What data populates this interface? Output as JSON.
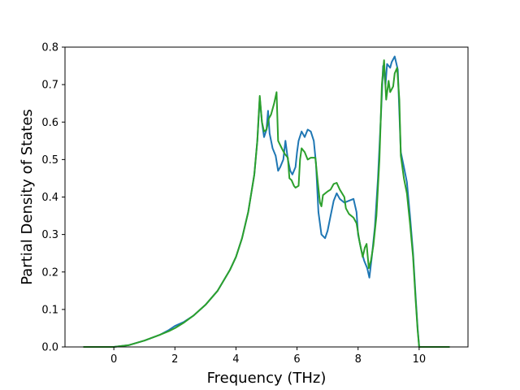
{
  "chart_data": {
    "type": "line",
    "title": "",
    "xlabel": "Frequency (THz)",
    "ylabel": "Partial Density of States",
    "xlim": [
      -1.6,
      11.6
    ],
    "ylim": [
      0,
      0.8
    ],
    "x_ticks": [
      0,
      2,
      4,
      6,
      8,
      10
    ],
    "x_tick_labels": [
      "0",
      "2",
      "4",
      "6",
      "8",
      "10"
    ],
    "y_ticks": [
      0.0,
      0.1,
      0.2,
      0.3,
      0.4,
      0.5,
      0.6,
      0.7,
      0.8
    ],
    "y_tick_labels": [
      "0.0",
      "0.1",
      "0.2",
      "0.3",
      "0.4",
      "0.5",
      "0.6",
      "0.7",
      "0.8"
    ],
    "grid": false,
    "legend": false,
    "series": [
      {
        "color": "#1f77b4",
        "points": [
          [
            -1.0,
            0
          ],
          [
            0.0,
            0
          ],
          [
            0.5,
            0.005
          ],
          [
            1.0,
            0.017
          ],
          [
            1.5,
            0.032
          ],
          [
            1.8,
            0.045
          ],
          [
            2.0,
            0.056
          ],
          [
            2.3,
            0.067
          ],
          [
            2.6,
            0.083
          ],
          [
            3.0,
            0.112
          ],
          [
            3.4,
            0.15
          ],
          [
            3.8,
            0.205
          ],
          [
            4.0,
            0.24
          ],
          [
            4.2,
            0.29
          ],
          [
            4.4,
            0.36
          ],
          [
            4.6,
            0.46
          ],
          [
            4.7,
            0.55
          ],
          [
            4.78,
            0.665
          ],
          [
            4.85,
            0.6
          ],
          [
            4.92,
            0.56
          ],
          [
            5.0,
            0.58
          ],
          [
            5.05,
            0.63
          ],
          [
            5.1,
            0.57
          ],
          [
            5.2,
            0.53
          ],
          [
            5.3,
            0.51
          ],
          [
            5.38,
            0.47
          ],
          [
            5.45,
            0.48
          ],
          [
            5.55,
            0.5
          ],
          [
            5.62,
            0.55
          ],
          [
            5.7,
            0.5
          ],
          [
            5.78,
            0.47
          ],
          [
            5.85,
            0.46
          ],
          [
            5.95,
            0.48
          ],
          [
            6.0,
            0.52
          ],
          [
            6.05,
            0.55
          ],
          [
            6.15,
            0.575
          ],
          [
            6.25,
            0.56
          ],
          [
            6.35,
            0.58
          ],
          [
            6.45,
            0.575
          ],
          [
            6.55,
            0.55
          ],
          [
            6.62,
            0.49
          ],
          [
            6.7,
            0.36
          ],
          [
            6.8,
            0.3
          ],
          [
            6.92,
            0.29
          ],
          [
            7.0,
            0.31
          ],
          [
            7.1,
            0.35
          ],
          [
            7.2,
            0.39
          ],
          [
            7.3,
            0.41
          ],
          [
            7.4,
            0.395
          ],
          [
            7.55,
            0.385
          ],
          [
            7.7,
            0.39
          ],
          [
            7.85,
            0.395
          ],
          [
            7.95,
            0.36
          ],
          [
            8.0,
            0.3
          ],
          [
            8.1,
            0.26
          ],
          [
            8.2,
            0.23
          ],
          [
            8.3,
            0.21
          ],
          [
            8.37,
            0.185
          ],
          [
            8.45,
            0.24
          ],
          [
            8.55,
            0.32
          ],
          [
            8.65,
            0.45
          ],
          [
            8.75,
            0.62
          ],
          [
            8.82,
            0.75
          ],
          [
            8.9,
            0.7
          ],
          [
            8.95,
            0.755
          ],
          [
            9.05,
            0.745
          ],
          [
            9.1,
            0.76
          ],
          [
            9.2,
            0.775
          ],
          [
            9.3,
            0.74
          ],
          [
            9.4,
            0.52
          ],
          [
            9.5,
            0.48
          ],
          [
            9.6,
            0.44
          ],
          [
            9.7,
            0.35
          ],
          [
            9.8,
            0.25
          ],
          [
            9.88,
            0.14
          ],
          [
            9.95,
            0.05
          ],
          [
            10.0,
            0
          ],
          [
            11.0,
            0
          ]
        ]
      },
      {
        "color": "#2ca02c",
        "points": [
          [
            -1.0,
            0
          ],
          [
            0.0,
            0
          ],
          [
            0.5,
            0.005
          ],
          [
            1.0,
            0.017
          ],
          [
            1.5,
            0.032
          ],
          [
            1.8,
            0.042
          ],
          [
            2.0,
            0.05
          ],
          [
            2.3,
            0.065
          ],
          [
            2.6,
            0.083
          ],
          [
            3.0,
            0.112
          ],
          [
            3.4,
            0.15
          ],
          [
            3.8,
            0.205
          ],
          [
            4.0,
            0.24
          ],
          [
            4.2,
            0.29
          ],
          [
            4.4,
            0.36
          ],
          [
            4.6,
            0.46
          ],
          [
            4.7,
            0.55
          ],
          [
            4.78,
            0.67
          ],
          [
            4.85,
            0.6
          ],
          [
            4.92,
            0.575
          ],
          [
            5.0,
            0.58
          ],
          [
            5.08,
            0.61
          ],
          [
            5.15,
            0.62
          ],
          [
            5.25,
            0.65
          ],
          [
            5.33,
            0.68
          ],
          [
            5.38,
            0.55
          ],
          [
            5.5,
            0.53
          ],
          [
            5.6,
            0.515
          ],
          [
            5.7,
            0.505
          ],
          [
            5.75,
            0.45
          ],
          [
            5.82,
            0.445
          ],
          [
            5.9,
            0.43
          ],
          [
            5.95,
            0.425
          ],
          [
            6.05,
            0.43
          ],
          [
            6.1,
            0.5
          ],
          [
            6.15,
            0.53
          ],
          [
            6.25,
            0.52
          ],
          [
            6.35,
            0.5
          ],
          [
            6.45,
            0.505
          ],
          [
            6.6,
            0.505
          ],
          [
            6.68,
            0.44
          ],
          [
            6.75,
            0.385
          ],
          [
            6.8,
            0.375
          ],
          [
            6.85,
            0.405
          ],
          [
            7.0,
            0.415
          ],
          [
            7.1,
            0.42
          ],
          [
            7.2,
            0.435
          ],
          [
            7.3,
            0.438
          ],
          [
            7.4,
            0.42
          ],
          [
            7.55,
            0.4
          ],
          [
            7.6,
            0.37
          ],
          [
            7.7,
            0.355
          ],
          [
            7.85,
            0.345
          ],
          [
            7.95,
            0.33
          ],
          [
            8.05,
            0.28
          ],
          [
            8.15,
            0.24
          ],
          [
            8.22,
            0.265
          ],
          [
            8.28,
            0.275
          ],
          [
            8.35,
            0.21
          ],
          [
            8.42,
            0.23
          ],
          [
            8.5,
            0.27
          ],
          [
            8.6,
            0.35
          ],
          [
            8.7,
            0.5
          ],
          [
            8.78,
            0.7
          ],
          [
            8.85,
            0.765
          ],
          [
            8.92,
            0.66
          ],
          [
            9.0,
            0.71
          ],
          [
            9.05,
            0.68
          ],
          [
            9.15,
            0.695
          ],
          [
            9.2,
            0.73
          ],
          [
            9.28,
            0.745
          ],
          [
            9.35,
            0.66
          ],
          [
            9.4,
            0.51
          ],
          [
            9.5,
            0.45
          ],
          [
            9.6,
            0.41
          ],
          [
            9.7,
            0.33
          ],
          [
            9.8,
            0.24
          ],
          [
            9.88,
            0.13
          ],
          [
            9.95,
            0.045
          ],
          [
            10.0,
            0
          ],
          [
            11.0,
            0
          ]
        ]
      }
    ]
  }
}
